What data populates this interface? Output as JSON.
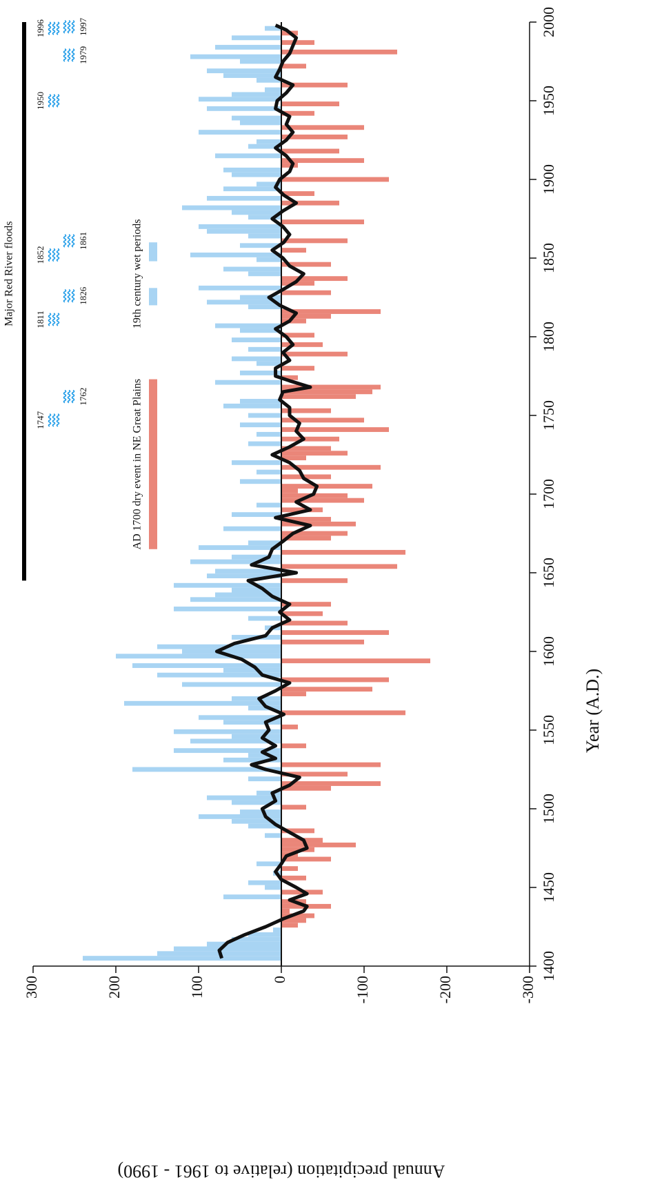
{
  "chart_data": {
    "type": "bar",
    "xlabel": "Year (A.D.)",
    "ylabel": "Annual precipitation (relative to 1961 - 1990)",
    "xlim": [
      1400,
      2000
    ],
    "xticks": [
      1400,
      1450,
      1500,
      1550,
      1600,
      1650,
      1700,
      1750,
      1800,
      1850,
      1900,
      1950,
      2000
    ],
    "ylim": [
      -300,
      300
    ],
    "yticks": [
      -300,
      -200,
      -100,
      0,
      100,
      200,
      300
    ],
    "colors": {
      "positive": "#a8d4f3",
      "negative": "#ea8679",
      "smooth": "#111111"
    },
    "bars": {
      "x": [
        1405,
        1408,
        1411,
        1414,
        1417,
        1420,
        1423,
        1426,
        1429,
        1432,
        1435,
        1438,
        1441,
        1444,
        1447,
        1450,
        1453,
        1456,
        1459,
        1462,
        1465,
        1468,
        1471,
        1474,
        1477,
        1480,
        1483,
        1486,
        1489,
        1492,
        1495,
        1498,
        1501,
        1504,
        1507,
        1510,
        1513,
        1516,
        1519,
        1522,
        1525,
        1528,
        1531,
        1534,
        1537,
        1540,
        1543,
        1546,
        1549,
        1552,
        1555,
        1558,
        1561,
        1564,
        1567,
        1570,
        1573,
        1576,
        1579,
        1582,
        1585,
        1588,
        1591,
        1594,
        1597,
        1600,
        1603,
        1606,
        1609,
        1612,
        1615,
        1618,
        1621,
        1624,
        1627,
        1630,
        1633,
        1636,
        1639,
        1642,
        1645,
        1648,
        1651,
        1654,
        1657,
        1660,
        1663,
        1666,
        1669,
        1672,
        1675,
        1678,
        1681,
        1684,
        1687,
        1690,
        1693,
        1696,
        1699,
        1702,
        1705,
        1708,
        1711,
        1714,
        1717,
        1720,
        1723,
        1726,
        1729,
        1732,
        1735,
        1738,
        1741,
        1744,
        1747,
        1750,
        1753,
        1756,
        1759,
        1762,
        1765,
        1768,
        1771,
        1774,
        1777,
        1780,
        1783,
        1786,
        1789,
        1792,
        1795,
        1798,
        1801,
        1804,
        1807,
        1810,
        1813,
        1816,
        1819,
        1822,
        1825,
        1828,
        1831,
        1834,
        1837,
        1840,
        1843,
        1846,
        1849,
        1852,
        1855,
        1858,
        1861,
        1864,
        1867,
        1870,
        1873,
        1876,
        1879,
        1882,
        1885,
        1888,
        1891,
        1894,
        1897,
        1900,
        1903,
        1906,
        1909,
        1912,
        1915,
        1918,
        1921,
        1924,
        1927,
        1930,
        1933,
        1936,
        1939,
        1942,
        1945,
        1948,
        1951,
        1954,
        1957,
        1960,
        1963,
        1966,
        1969,
        1972,
        1975,
        1978,
        1981,
        1984,
        1987,
        1990,
        1993,
        1996
      ],
      "values": [
        240,
        150,
        130,
        90,
        60,
        40,
        10,
        -20,
        -30,
        -40,
        -10,
        -60,
        -30,
        70,
        -50,
        20,
        40,
        -30,
        10,
        -20,
        30,
        -60,
        -20,
        -40,
        -90,
        -50,
        20,
        -40,
        40,
        60,
        100,
        50,
        -30,
        60,
        90,
        30,
        -60,
        -120,
        40,
        -80,
        180,
        -120,
        70,
        40,
        130,
        -30,
        110,
        60,
        130,
        -20,
        70,
        100,
        -150,
        40,
        190,
        60,
        -30,
        -110,
        120,
        -130,
        150,
        70,
        180,
        -180,
        200,
        120,
        150,
        -100,
        60,
        -130,
        20,
        -80,
        40,
        -50,
        130,
        -60,
        110,
        80,
        60,
        130,
        -80,
        90,
        80,
        -140,
        110,
        60,
        -150,
        100,
        40,
        -60,
        -80,
        70,
        -90,
        -60,
        60,
        -50,
        30,
        -100,
        -80,
        -20,
        -110,
        50,
        -60,
        30,
        -120,
        60,
        -30,
        -80,
        -60,
        40,
        -70,
        30,
        -130,
        50,
        -100,
        40,
        -60,
        70,
        50,
        -90,
        -110,
        -120,
        80,
        -20,
        50,
        -40,
        30,
        60,
        -80,
        40,
        -50,
        60,
        -40,
        50,
        80,
        -30,
        -60,
        -120,
        40,
        90,
        50,
        -60,
        100,
        -40,
        -80,
        40,
        70,
        -60,
        30,
        110,
        -30,
        50,
        -80,
        40,
        90,
        100,
        -100,
        40,
        60,
        120,
        -70,
        90,
        -40,
        70,
        30,
        -130,
        60,
        70,
        -20,
        -100,
        80,
        -70,
        40,
        30,
        -80,
        100,
        -100,
        50,
        60,
        -40,
        90,
        -70,
        100,
        60,
        20,
        -80,
        30,
        70,
        90,
        -30,
        50,
        110,
        -140,
        80,
        -40,
        60,
        -20,
        20
      ]
    },
    "smooth": {
      "x": [
        1405,
        1410,
        1415,
        1420,
        1425,
        1430,
        1435,
        1438,
        1442,
        1446,
        1450,
        1455,
        1460,
        1465,
        1470,
        1475,
        1480,
        1485,
        1490,
        1495,
        1500,
        1505,
        1510,
        1515,
        1520,
        1525,
        1528,
        1532,
        1536,
        1540,
        1545,
        1550,
        1555,
        1560,
        1565,
        1570,
        1575,
        1580,
        1585,
        1590,
        1595,
        1600,
        1605,
        1610,
        1615,
        1620,
        1625,
        1630,
        1635,
        1640,
        1645,
        1650,
        1655,
        1660,
        1665,
        1670,
        1675,
        1680,
        1685,
        1690,
        1695,
        1700,
        1705,
        1710,
        1715,
        1720,
        1725,
        1730,
        1735,
        1740,
        1745,
        1750,
        1755,
        1760,
        1765,
        1768,
        1772,
        1775,
        1780,
        1785,
        1790,
        1795,
        1800,
        1805,
        1810,
        1815,
        1820,
        1825,
        1830,
        1835,
        1840,
        1845,
        1850,
        1855,
        1860,
        1865,
        1870,
        1875,
        1880,
        1885,
        1890,
        1895,
        1900,
        1905,
        1910,
        1915,
        1920,
        1925,
        1930,
        1935,
        1940,
        1945,
        1950,
        1955,
        1960,
        1965,
        1970,
        1975,
        1980,
        1985,
        1990,
        1995,
        1998
      ],
      "values": [
        72,
        75,
        65,
        44,
        19,
        -2,
        -27,
        -31,
        -10,
        -31,
        -18,
        0,
        7,
        0,
        -6,
        -31,
        -27,
        -10,
        7,
        19,
        23,
        7,
        11,
        -10,
        -22,
        19,
        36,
        7,
        23,
        7,
        23,
        15,
        19,
        -3,
        19,
        27,
        7,
        -10,
        23,
        32,
        48,
        78,
        57,
        19,
        11,
        -10,
        2,
        -10,
        11,
        23,
        40,
        -18,
        36,
        15,
        11,
        -2,
        -14,
        -35,
        7,
        -35,
        -18,
        -39,
        -43,
        -27,
        -22,
        -10,
        11,
        -10,
        -27,
        -18,
        -22,
        -10,
        -10,
        2,
        -2,
        -35,
        -10,
        7,
        7,
        -10,
        -2,
        -14,
        -6,
        7,
        -10,
        -18,
        2,
        15,
        -2,
        -18,
        -27,
        -10,
        -2,
        11,
        -3,
        -10,
        -2,
        11,
        -2,
        -18,
        -3,
        7,
        2,
        -10,
        -14,
        -6,
        7,
        -6,
        -14,
        -6,
        -10,
        7,
        5,
        -6,
        -14,
        7,
        2,
        -2,
        -10,
        -14,
        -18,
        -6,
        7
      ]
    },
    "floods": {
      "label": "Major Red River floods",
      "span": [
        1645,
        2000
      ],
      "years": [
        1747,
        1762,
        1811,
        1826,
        1852,
        1861,
        1950,
        1979,
        1996,
        1997
      ]
    },
    "dry_event": {
      "label": "AD 1700 dry event in NE Great Plains",
      "span": [
        1665,
        1773
      ]
    },
    "wet_periods": {
      "label": "19th century wet periods",
      "spans": [
        [
          1820,
          1831
        ],
        [
          1848,
          1860
        ]
      ]
    }
  }
}
